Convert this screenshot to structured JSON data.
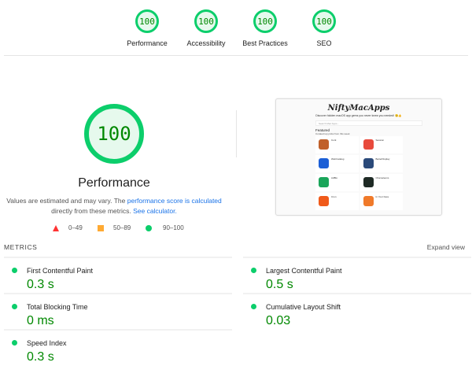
{
  "categories": [
    {
      "label": "Performance",
      "score": "100"
    },
    {
      "label": "Accessibility",
      "score": "100"
    },
    {
      "label": "Best Practices",
      "score": "100"
    },
    {
      "label": "SEO",
      "score": "100"
    }
  ],
  "main": {
    "score": "100",
    "title": "Performance",
    "desc_1": "Values are estimated and may vary. The ",
    "desc_link": "performance score is calculated",
    "desc_2": "directly from these metrics. ",
    "calc_link": "See calculator."
  },
  "legend": [
    {
      "shape": "triangle",
      "color": "#ff3333",
      "label": "0–49"
    },
    {
      "shape": "square",
      "color": "#ffaa33",
      "label": "50–89"
    },
    {
      "shape": "circle",
      "color": "#0cce6b",
      "label": "90–100"
    }
  ],
  "metrics_header": "METRICS",
  "expand_view": "Expand view",
  "metrics": [
    {
      "title": "First Contentful Paint",
      "value": "0.3 s"
    },
    {
      "title": "Largest Contentful Paint",
      "value": "0.5 s"
    },
    {
      "title": "Total Blocking Time",
      "value": "0 ms"
    },
    {
      "title": "Cumulative Layout Shift",
      "value": "0.03"
    },
    {
      "title": "Speed Index",
      "value": "0.3 s"
    }
  ],
  "screenshot": {
    "logo": "NiftyMacApps",
    "subtitle": "Discover hidden macOS app gems you never knew you needed! 😉👍",
    "search_placeholder": "Search Mac Apps...",
    "featured": "Featured",
    "curated": "Curated top picks from this week",
    "apps": [
      {
        "name": "Cork",
        "color": "#c0602a"
      },
      {
        "name": "Session",
        "color": "#e84a3c"
      },
      {
        "name": "WebCatalog",
        "color": "#1c5fd6"
      },
      {
        "name": "BetterDisplay",
        "color": "#2b4a7a"
      },
      {
        "name": "AdBlo",
        "color": "#1aa55a"
      },
      {
        "name": "Chameleons",
        "color": "#1e2a25"
      },
      {
        "name": "Cron",
        "color": "#f05a1a"
      },
      {
        "name": "In Your Face",
        "color": "#f07a2a"
      }
    ]
  },
  "colors": {
    "pass": "#0cce6b",
    "pass_text": "#008800",
    "link": "#1a73e8"
  }
}
